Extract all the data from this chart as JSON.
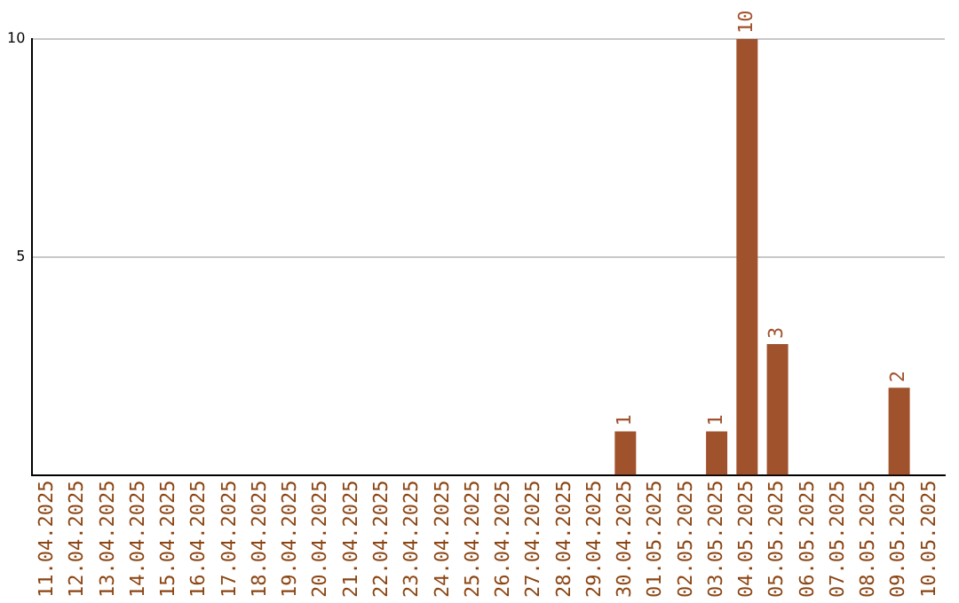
{
  "chart_data": {
    "type": "bar",
    "categories": [
      "11.04.2025",
      "12.04.2025",
      "13.04.2025",
      "14.04.2025",
      "15.04.2025",
      "16.04.2025",
      "17.04.2025",
      "18.04.2025",
      "19.04.2025",
      "20.04.2025",
      "21.04.2025",
      "22.04.2025",
      "23.04.2025",
      "24.04.2025",
      "25.04.2025",
      "26.04.2025",
      "27.04.2025",
      "28.04.2025",
      "29.04.2025",
      "30.04.2025",
      "01.05.2025",
      "02.05.2025",
      "03.05.2025",
      "04.05.2025",
      "05.05.2025",
      "06.05.2025",
      "07.05.2025",
      "08.05.2025",
      "09.05.2025",
      "10.05.2025"
    ],
    "values": [
      0,
      0,
      0,
      0,
      0,
      0,
      0,
      0,
      0,
      0,
      0,
      0,
      0,
      0,
      0,
      0,
      0,
      0,
      0,
      1,
      0,
      0,
      1,
      10,
      3,
      0,
      0,
      0,
      2,
      0
    ],
    "value_labels": [
      null,
      null,
      null,
      null,
      null,
      null,
      null,
      null,
      null,
      null,
      null,
      null,
      null,
      null,
      null,
      null,
      null,
      null,
      null,
      "1",
      null,
      null,
      "1",
      "10",
      "3",
      null,
      null,
      null,
      "2",
      null
    ],
    "color": "#a0522d",
    "ylim": [
      0,
      10
    ],
    "yticks": [
      5,
      10
    ],
    "grid": "y",
    "legend": false
  }
}
